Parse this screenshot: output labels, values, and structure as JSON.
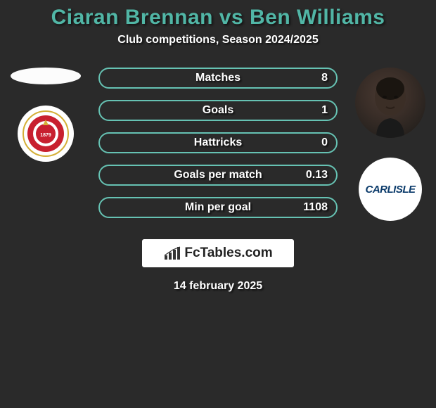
{
  "colors": {
    "background": "#2a2a2a",
    "title": "#51b6a6",
    "subtitle": "#ffffff",
    "stat_border": "#66c2b3",
    "stat_label": "#ffffff",
    "stat_value": "#ffffff",
    "logo_bg": "#ffffff",
    "logo_text": "#222222",
    "crest_left_ring": "#d4af37",
    "crest_left_inner": "#c8202f",
    "carlisle_text": "#0a3a6a"
  },
  "title": {
    "text": "Ciaran Brennan vs Ben Williams",
    "fontsize": 30
  },
  "subtitle": {
    "text": "Club competitions, Season 2024/2025",
    "fontsize": 16
  },
  "stats": {
    "label_fontsize": 16,
    "value_fontsize": 16,
    "rows": [
      {
        "label": "Matches",
        "right_value": "8"
      },
      {
        "label": "Goals",
        "right_value": "1"
      },
      {
        "label": "Hattricks",
        "right_value": "0"
      },
      {
        "label": "Goals per match",
        "right_value": "0.13"
      },
      {
        "label": "Min per goal",
        "right_value": "1108"
      }
    ]
  },
  "left_player": {
    "avatar_semantic": "player-silhouette-placeholder"
  },
  "left_crest": {
    "semantic": "swindon-town-crest",
    "year": "1879"
  },
  "right_player": {
    "avatar_semantic": "player-headshot"
  },
  "right_crest": {
    "semantic": "carlisle-united-crest",
    "text": "CARLISLE"
  },
  "footer": {
    "logo_text": "FcTables.com",
    "logo_icon": "bar-chart-icon"
  },
  "date": {
    "text": "14 february 2025",
    "fontsize": 16
  }
}
